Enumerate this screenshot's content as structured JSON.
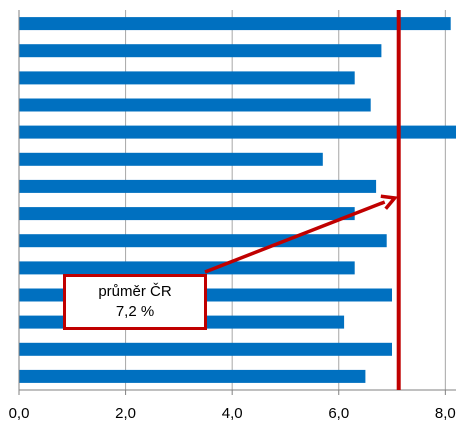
{
  "chart_data": {
    "type": "bar",
    "orientation": "horizontal",
    "categories": [
      "",
      "",
      "",
      "",
      "",
      "",
      "",
      "",
      "",
      "",
      "",
      "",
      "",
      ""
    ],
    "values": [
      8.1,
      6.8,
      6.3,
      6.6,
      8.2,
      5.7,
      6.7,
      6.3,
      6.9,
      6.3,
      7.0,
      6.1,
      7.0,
      6.5
    ],
    "xlim": [
      0,
      8.2
    ],
    "xticks": [
      "0,0",
      "2,0",
      "4,0",
      "6,0",
      "8,0"
    ],
    "xtick_values": [
      0,
      2,
      4,
      6,
      8
    ],
    "grid": "vertical",
    "bar_color": "#0070c0",
    "reference_line": {
      "value": 7.2,
      "color": "#c00000"
    },
    "annotation": {
      "line1": "průměr ČR",
      "line2": "7,2 %"
    }
  }
}
